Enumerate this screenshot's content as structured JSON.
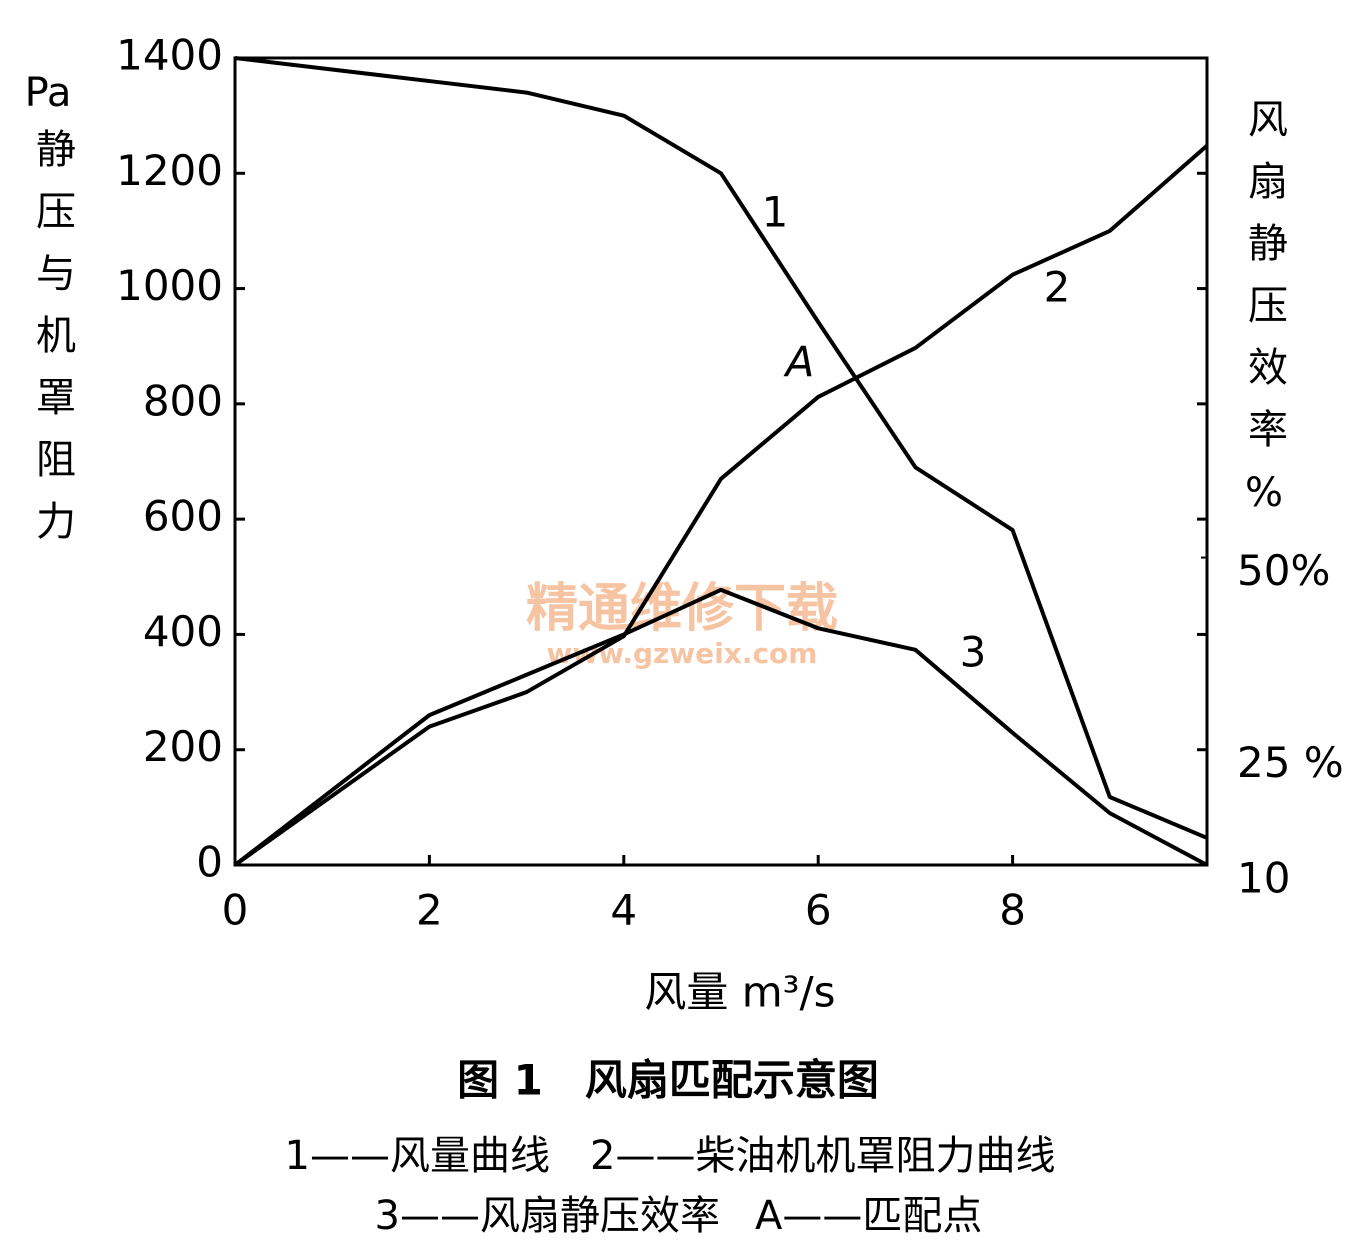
{
  "chart_data": {
    "type": "line",
    "title": "图 1　风扇匹配示意图",
    "caption": [
      "1——风量曲线　2——柴油机机罩阻力曲线",
      "3——风扇静压效率",
      "A——匹配点"
    ],
    "xlabel": "风量  m³/s",
    "ylabel_unit": "Pa",
    "ylabel": "静压与机罩阻力",
    "y2label": "风扇静压效率%",
    "annotations": [
      "A"
    ],
    "watermark": [
      "精通维修下载",
      "www.gzweix.com"
    ],
    "x": [
      0,
      2,
      3,
      4,
      5,
      6,
      7,
      8,
      9,
      10
    ],
    "series": [
      {
        "name": "1",
        "color": "#000000",
        "values": [
          1400,
          1360,
          1340,
          1300,
          1200,
          942,
          690,
          581,
          118,
          47
        ]
      },
      {
        "name": "2",
        "color": "#000000",
        "values": [
          0,
          240,
          300,
          397,
          670,
          812,
          897,
          1024,
          1100,
          1248
        ]
      },
      {
        "name": "3",
        "color": "#000000",
        "axis": "y2",
        "values": [
          10,
          29.5,
          34.75,
          40,
          45.8,
          40.8,
          38,
          27.2,
          16.75,
          10
        ]
      }
    ],
    "xlim": [
      0,
      10
    ],
    "xticks": [
      0,
      2,
      4,
      6,
      8
    ],
    "ylim": [
      0,
      1400
    ],
    "yticks": [
      0,
      200,
      400,
      600,
      800,
      1000,
      1200,
      1400
    ],
    "y2lim": [
      10,
      115
    ],
    "y2ticks": [
      10,
      {
        "value": 25,
        "label": "25 %"
      },
      {
        "value": 50,
        "label": "50%"
      }
    ]
  }
}
